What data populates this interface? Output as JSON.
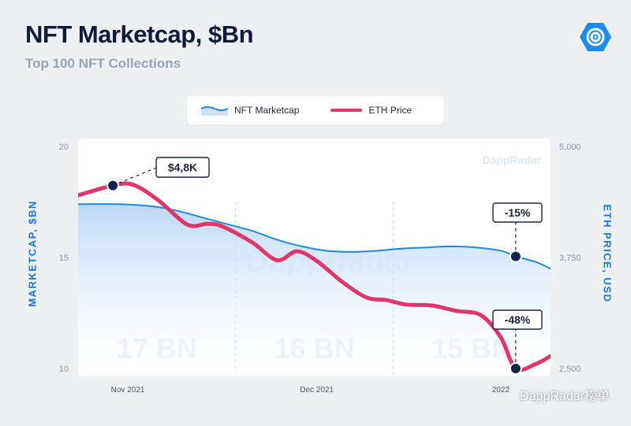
{
  "header": {
    "title": "NFT Marketcap, $Bn",
    "subtitle": "Top 100 NFT Collections"
  },
  "legend": {
    "items": [
      {
        "label": "NFT Marketcap",
        "kind": "area",
        "color": "#1e88e5"
      },
      {
        "label": "ETH Price",
        "kind": "line",
        "color": "#e0376a"
      }
    ]
  },
  "watermark": {
    "chart_text": "DappRadar",
    "corner_text": "DappRadar榜单"
  },
  "chart_data": {
    "type": "line",
    "title": "NFT Marketcap, $Bn",
    "subtitle": "Top 100 NFT Collections",
    "ylabel": "MARKETCAP, $BN",
    "y2label": "ETH PRICE, USD",
    "ylim": [
      10,
      20
    ],
    "y2lim": [
      2500,
      5000
    ],
    "yticks": [
      "20",
      "15",
      "10"
    ],
    "y2ticks": [
      "5,000",
      "3,750",
      "2,500"
    ],
    "xticks": [
      "Nov 2021",
      "Dec 2021",
      "2022"
    ],
    "x_range": [
      0,
      95
    ],
    "grid": false,
    "legend_position": "top",
    "period_labels": [
      "17 BN",
      "16 BN",
      "15 BN"
    ],
    "series": [
      {
        "name": "NFT Marketcap",
        "axis": "left",
        "style": "area",
        "color": "#1e88e5",
        "x": [
          0,
          8,
          15,
          20,
          25,
          30,
          35,
          40,
          45,
          50,
          55,
          60,
          65,
          70,
          75,
          80,
          85,
          88,
          92,
          95
        ],
        "values": [
          17.4,
          17.4,
          17.3,
          17.1,
          16.8,
          16.5,
          16.2,
          15.8,
          15.5,
          15.3,
          15.25,
          15.3,
          15.4,
          15.45,
          15.5,
          15.45,
          15.3,
          15.05,
          14.8,
          14.5
        ]
      },
      {
        "name": "ETH Price",
        "axis": "right",
        "style": "line",
        "color": "#e0376a",
        "x": [
          0,
          7,
          11,
          16,
          22,
          26,
          29,
          35,
          40,
          44,
          48,
          53,
          58,
          62,
          66,
          71,
          76,
          81,
          85,
          88,
          92,
          95
        ],
        "values": [
          4450,
          4560,
          4570,
          4400,
          4120,
          4130,
          4100,
          3920,
          3720,
          3820,
          3710,
          3480,
          3300,
          3270,
          3220,
          3210,
          3150,
          3100,
          2850,
          2500,
          2550,
          2640
        ]
      }
    ],
    "annotations": [
      {
        "text": "$4,8K",
        "series": "ETH Price",
        "x": 7
      },
      {
        "text": "-15%",
        "series": "NFT Marketcap",
        "x": 88
      },
      {
        "text": "-48%",
        "series": "ETH Price",
        "x": 88
      }
    ]
  }
}
